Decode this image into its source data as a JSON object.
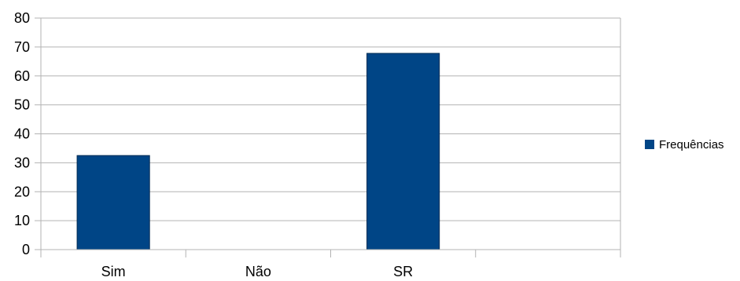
{
  "chart_data": {
    "type": "bar",
    "categories": [
      "Sim",
      "Não",
      "SR",
      ""
    ],
    "series": [
      {
        "name": "Frequências",
        "values": [
          32.5,
          0,
          67.8,
          0
        ],
        "color": "#004586"
      }
    ],
    "ylim": [
      0,
      80
    ],
    "yticks": [
      0,
      10,
      20,
      30,
      40,
      50,
      60,
      70,
      80
    ],
    "grid": true,
    "legend": "right"
  }
}
